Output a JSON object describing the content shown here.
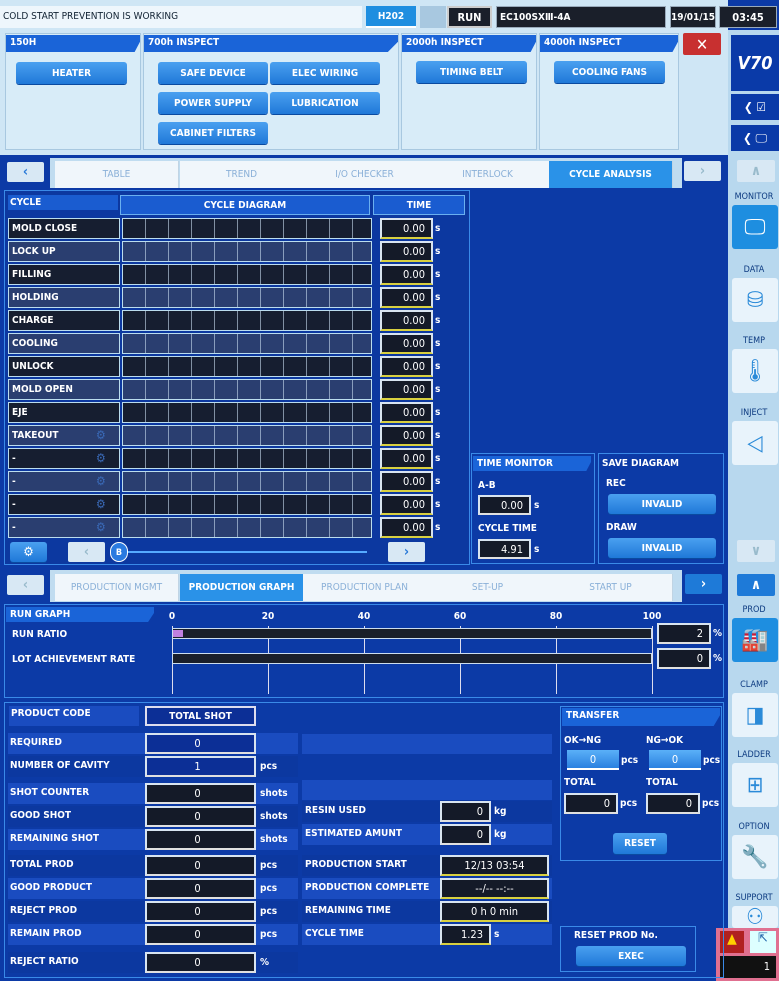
{
  "topbar": {
    "message": "COLD START PREVENTION IS WORKING",
    "tab": "H202",
    "status": "RUN",
    "model": "EC100SXⅢ-4A",
    "date": "19/01/15",
    "time": "03:45"
  },
  "maintenance": {
    "sections": [
      {
        "title": "150H",
        "buttons": [
          "HEATER"
        ]
      },
      {
        "title": "700h INSPECT",
        "buttons": [
          "SAFE DEVICE",
          "ELEC WIRING",
          "POWER SUPPLY",
          "LUBRICATION",
          "CABINET FILTERS"
        ]
      },
      {
        "title": "2000h INSPECT",
        "buttons": [
          "TIMING BELT"
        ]
      },
      {
        "title": "4000h INSPECT",
        "buttons": [
          "COOLING FANS"
        ]
      }
    ],
    "close": "✕"
  },
  "sidebar": {
    "logo": "V70",
    "items": [
      "MONITOR",
      "DATA",
      "TEMP",
      "INJECT",
      "PROD",
      "CLAMP",
      "LADDER",
      "OPTION",
      "SUPPORT"
    ],
    "alert_count": "1"
  },
  "tabs1": {
    "items": [
      "TABLE",
      "TREND",
      "I/O CHECKER",
      "INTERLOCK",
      "CYCLE ANALYSIS"
    ],
    "active": 4
  },
  "cycle": {
    "header": "CYCLE",
    "diagram": "CYCLE DIAGRAM",
    "time": "TIME",
    "unit": "s",
    "rows": [
      {
        "label": "MOLD CLOSE",
        "time": "0.00"
      },
      {
        "label": "LOCK UP",
        "time": "0.00"
      },
      {
        "label": "FILLING",
        "time": "0.00"
      },
      {
        "label": "HOLDING",
        "time": "0.00"
      },
      {
        "label": "CHARGE",
        "time": "0.00"
      },
      {
        "label": "COOLING",
        "time": "0.00"
      },
      {
        "label": "UNLOCK",
        "time": "0.00"
      },
      {
        "label": "MOLD OPEN",
        "time": "0.00"
      },
      {
        "label": "EJE",
        "time": "0.00"
      },
      {
        "label": "TAKEOUT",
        "time": "0.00"
      },
      {
        "label": "-",
        "time": "0.00"
      },
      {
        "label": "-",
        "time": "0.00"
      },
      {
        "label": "-",
        "time": "0.00"
      },
      {
        "label": "-",
        "time": "0.00"
      }
    ],
    "slider_marker": "B"
  },
  "time_monitor": {
    "title": "TIME MONITOR",
    "ab_label": "A-B",
    "ab": "0.00",
    "cycle_label": "CYCLE TIME",
    "cycle": "4.91",
    "unit": "s"
  },
  "save_diagram": {
    "title": "SAVE DIAGRAM",
    "rec_label": "REC",
    "rec": "INVALID",
    "draw_label": "DRAW",
    "draw": "INVALID"
  },
  "tabs2": {
    "items": [
      "PRODUCTION MGMT",
      "PRODUCTION GRAPH",
      "PRODUCTION PLAN",
      "SET-UP",
      "START UP"
    ],
    "active": 1
  },
  "run_graph": {
    "title": "RUN GRAPH",
    "ticks": [
      "0",
      "20",
      "40",
      "60",
      "80",
      "100"
    ],
    "unit": "%",
    "bars": [
      {
        "label": "RUN RATIO",
        "value": 2,
        "text": "2"
      },
      {
        "label": "LOT ACHIEVEMENT RATE",
        "value": 0,
        "text": "0"
      }
    ]
  },
  "production": {
    "product_code": "PRODUCT CODE",
    "total_shot": "TOTAL SHOT",
    "left": [
      {
        "label": "REQUIRED",
        "value": "0",
        "unit": ""
      },
      {
        "label": "NUMBER OF CAVITY",
        "value": "1",
        "unit": "pcs"
      },
      {
        "label": "SHOT COUNTER",
        "value": "0",
        "unit": "shots"
      },
      {
        "label": "GOOD SHOT",
        "value": "0",
        "unit": "shots"
      },
      {
        "label": "REMAINING SHOT",
        "value": "0",
        "unit": "shots"
      },
      {
        "label": "TOTAL PROD",
        "value": "0",
        "unit": "pcs"
      },
      {
        "label": "GOOD PRODUCT",
        "value": "0",
        "unit": "pcs"
      },
      {
        "label": "REJECT PROD",
        "value": "0",
        "unit": "pcs"
      },
      {
        "label": "REMAIN PROD",
        "value": "0",
        "unit": "pcs"
      },
      {
        "label": "REJECT RATIO",
        "value": "0",
        "unit": "%"
      }
    ],
    "mid": [
      {
        "label": "RESIN USED",
        "value": "0",
        "unit": "kg"
      },
      {
        "label": "ESTIMATED AMUNT",
        "value": "0",
        "unit": "kg"
      },
      {
        "label": "PRODUCTION START",
        "value": "12/13 03:54",
        "unit": ""
      },
      {
        "label": "PRODUCTION COMPLETE",
        "value": "--/-- --:--",
        "unit": ""
      },
      {
        "label": "REMAINING TIME",
        "value": "0 h   0 min",
        "unit": ""
      },
      {
        "label": "CYCLE TIME",
        "value": "1.23",
        "unit": "s"
      }
    ]
  },
  "transfer": {
    "title": "TRANSFER",
    "ok_ng": "OK→NG",
    "ng_ok": "NG→OK",
    "ok_ng_val": "0",
    "ng_ok_val": "0",
    "total": "TOTAL",
    "total1": "0",
    "total2": "0",
    "unit": "pcs",
    "reset": "RESET"
  },
  "reset_prod": {
    "title": "RESET PROD No.",
    "exec": "EXEC"
  }
}
